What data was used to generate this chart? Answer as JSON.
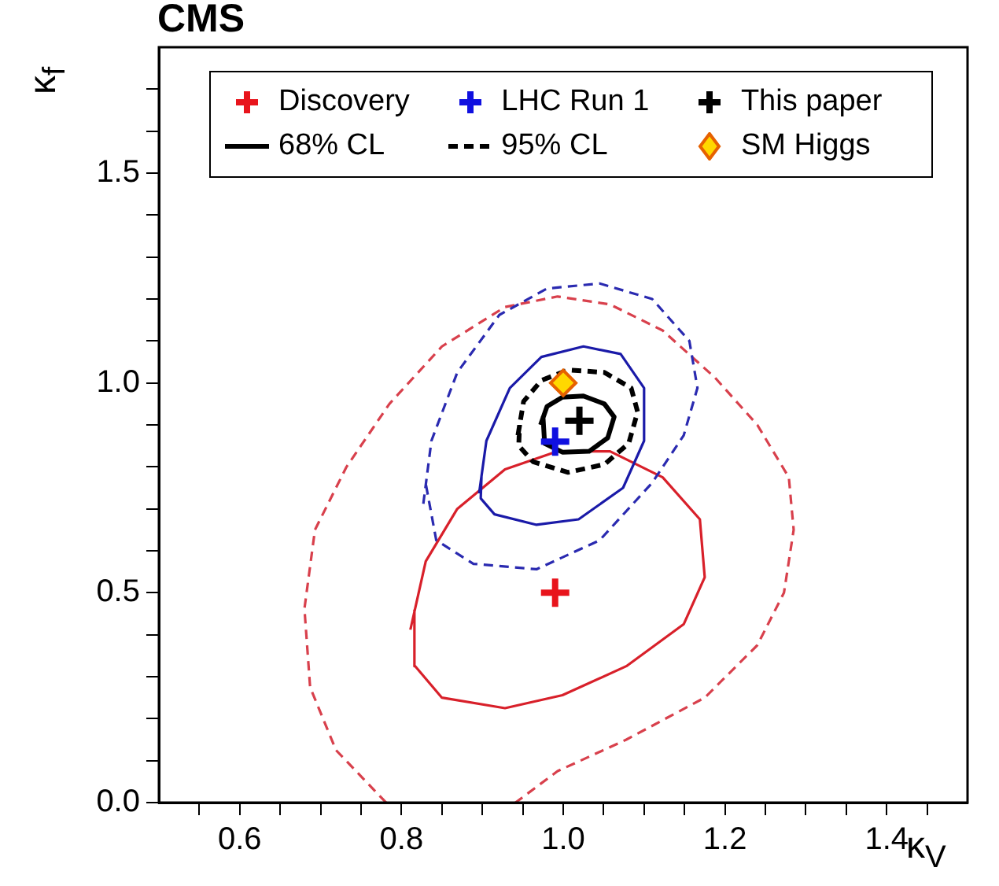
{
  "chart_data": {
    "type": "scatter",
    "title": "CMS",
    "xlabel": "κ$_{V}$",
    "ylabel": "κ$_{f}$",
    "xlim": [
      0.5,
      1.5
    ],
    "ylim": [
      0,
      1.8
    ],
    "xticks": [
      {
        "value": 0.55,
        "label": null
      },
      0.6,
      {
        "value": 0.65,
        "label": null
      },
      {
        "value": 0.7,
        "label": null
      },
      {
        "value": 0.75,
        "label": null
      },
      0.8,
      {
        "value": 0.85,
        "label": null
      },
      {
        "value": 0.9,
        "label": null
      },
      {
        "value": 0.95,
        "label": null
      },
      {
        "value": 1.0,
        "label": "1.0"
      },
      {
        "value": 1.05,
        "label": null
      },
      {
        "value": 1.1,
        "label": null
      },
      {
        "value": 1.15,
        "label": null
      },
      1.2,
      {
        "value": 1.25,
        "label": null
      },
      {
        "value": 1.3,
        "label": null
      },
      {
        "value": 1.35,
        "label": null
      },
      1.4,
      {
        "value": 1.45,
        "label": null
      }
    ],
    "yticks": [
      {
        "value": 0,
        "label": "0.0"
      },
      {
        "value": 0.1,
        "label": null
      },
      {
        "value": 0.2,
        "label": null
      },
      {
        "value": 0.3,
        "label": null
      },
      {
        "value": 0.4,
        "label": null
      },
      0.5,
      {
        "value": 0.6,
        "label": null
      },
      {
        "value": 0.7,
        "label": null
      },
      {
        "value": 0.8,
        "label": null
      },
      {
        "value": 0.9,
        "label": null
      },
      {
        "value": 1.0,
        "label": "1.0"
      },
      {
        "value": 1.1,
        "label": null
      },
      {
        "value": 1.2,
        "label": null
      },
      {
        "value": 1.3,
        "label": null
      },
      {
        "value": 1.4,
        "label": null
      },
      1.5,
      {
        "value": 1.6,
        "label": null
      },
      {
        "value": 1.7,
        "label": null
      }
    ],
    "grid": false,
    "legend": "top",
    "series": [
      {
        "name": "Discovery",
        "type": "scatter",
        "marker": "cross",
        "color": "#e8141c",
        "x": [
          0.99
        ],
        "values": [
          0.5
        ]
      },
      {
        "name": "LHC Run 1",
        "type": "scatter",
        "marker": "cross",
        "color": "#1010e0",
        "x": [
          0.99
        ],
        "values": [
          0.86
        ]
      },
      {
        "name": "This paper",
        "type": "scatter",
        "marker": "cross",
        "color": "#000000",
        "x": [
          1.02
        ],
        "values": [
          0.91
        ]
      },
      {
        "name": "68% CL",
        "type": "line",
        "marker": "none",
        "line_style": "solid",
        "color": "#000000",
        "x": [
          0.972,
          0.98,
          0.999,
          1.025,
          1.051,
          1.063,
          1.055,
          1.032,
          0.999,
          0.977,
          0.975
        ],
        "values": [
          0.9,
          0.944,
          0.966,
          0.969,
          0.95,
          0.919,
          0.869,
          0.837,
          0.835,
          0.856,
          0.92
        ]
      },
      {
        "name": "95% CL",
        "type": "line",
        "marker": "none",
        "line_style": "dashed",
        "color": "#000000",
        "x": [
          0.944,
          0.951,
          0.973,
          1.006,
          1.051,
          1.084,
          1.092,
          1.081,
          1.051,
          1.006,
          0.963,
          0.945,
          0.946
        ],
        "values": [
          0.875,
          0.956,
          1.006,
          1.031,
          1.025,
          0.988,
          0.931,
          0.856,
          0.806,
          0.787,
          0.812,
          0.85,
          0.9
        ]
      },
      {
        "name": "SM Higgs",
        "type": "scatter",
        "marker": "diamond",
        "color": "#ffd800",
        "x": [
          1.0
        ],
        "values": [
          1.0
        ]
      },
      {
        "type": "line",
        "marker": "none",
        "line_style": "solid",
        "color": "#1a1aa8",
        "x": [
          0.896,
          0.905,
          0.934,
          0.973,
          1.025,
          1.071,
          1.1,
          1.1,
          1.074,
          1.019,
          0.967,
          0.915,
          0.898,
          0.899
        ],
        "values": [
          0.737,
          0.862,
          0.988,
          1.062,
          1.087,
          1.069,
          0.988,
          0.862,
          0.75,
          0.675,
          0.662,
          0.687,
          0.725,
          0.78
        ]
      },
      {
        "type": "line",
        "marker": "none",
        "line_style": "dashed",
        "color": "#2a2ab0",
        "x": [
          0.827,
          0.837,
          0.869,
          0.921,
          0.98,
          1.045,
          1.11,
          1.156,
          1.166,
          1.149,
          1.11,
          1.045,
          0.967,
          0.889,
          0.843,
          0.83
        ],
        "values": [
          0.712,
          0.862,
          1.025,
          1.162,
          1.225,
          1.237,
          1.2,
          1.1,
          0.988,
          0.875,
          0.762,
          0.625,
          0.556,
          0.569,
          0.625,
          0.76
        ]
      },
      {
        "type": "line",
        "marker": "none",
        "line_style": "solid",
        "color": "#d8202a",
        "x": [
          0.811,
          0.83,
          0.869,
          0.928,
          0.993,
          1.058,
          1.123,
          1.169,
          1.175,
          1.149,
          1.078,
          0.999,
          0.928,
          0.85,
          0.817,
          0.816
        ],
        "values": [
          0.412,
          0.575,
          0.7,
          0.794,
          0.837,
          0.837,
          0.775,
          0.675,
          0.537,
          0.425,
          0.325,
          0.256,
          0.225,
          0.25,
          0.325,
          0.46
        ]
      },
      {
        "type": "line",
        "marker": "none",
        "line_style": "dashed",
        "color": "#d8404c",
        "x": [
          0.781,
          0.719,
          0.687,
          0.68,
          0.693,
          0.732,
          0.785,
          0.85,
          0.928,
          0.993,
          1.058,
          1.123,
          1.188,
          1.24,
          1.279,
          1.285,
          1.273,
          1.24,
          1.175,
          1.078,
          0.993,
          0.941
        ],
        "values": [
          0,
          0.125,
          0.275,
          0.462,
          0.65,
          0.8,
          0.95,
          1.087,
          1.181,
          1.206,
          1.187,
          1.125,
          1.012,
          0.9,
          0.775,
          0.65,
          0.5,
          0.375,
          0.25,
          0.15,
          0.075,
          0
        ]
      }
    ]
  }
}
